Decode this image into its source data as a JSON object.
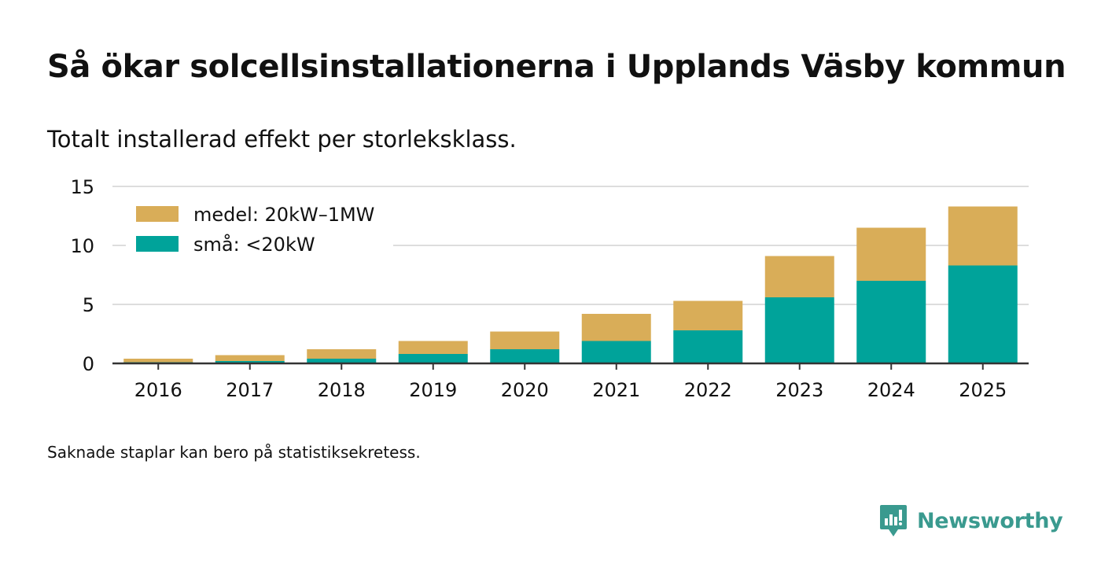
{
  "title": "Så ökar solcellsinstallationerna i Upplands Väsby kommun",
  "subtitle": "Totalt installerad effekt per storleksklass.",
  "footnote": "Saknade staplar kan bero på statistiksekretess.",
  "brand": {
    "name": "Newsworthy",
    "color": "#3a9a8f"
  },
  "colors": {
    "small": "#00a39a",
    "medium": "#d9ad58",
    "grid": "#dddddd",
    "axis": "#333333",
    "text": "#111111"
  },
  "chart_data": {
    "type": "bar",
    "stacked": true,
    "title": "Så ökar solcellsinstallationerna i Upplands Väsby kommun",
    "subtitle": "Totalt installerad effekt per storleksklass.",
    "xlabel": "",
    "ylabel": "",
    "ylim": [
      0,
      15
    ],
    "yticks": [
      0,
      5,
      10,
      15
    ],
    "grid": true,
    "legend_position": "top-left",
    "categories": [
      "2016",
      "2017",
      "2018",
      "2019",
      "2020",
      "2021",
      "2022",
      "2023",
      "2024",
      "2025"
    ],
    "series": [
      {
        "name": "små: <20kW",
        "color": "#00a39a",
        "values": [
          0.1,
          0.2,
          0.4,
          0.8,
          1.2,
          1.9,
          2.8,
          5.6,
          7.0,
          8.3
        ]
      },
      {
        "name": "medel: 20kW–1MW",
        "color": "#d9ad58",
        "values": [
          0.3,
          0.5,
          0.8,
          1.1,
          1.5,
          2.3,
          2.5,
          3.5,
          4.5,
          5.0
        ]
      }
    ]
  }
}
